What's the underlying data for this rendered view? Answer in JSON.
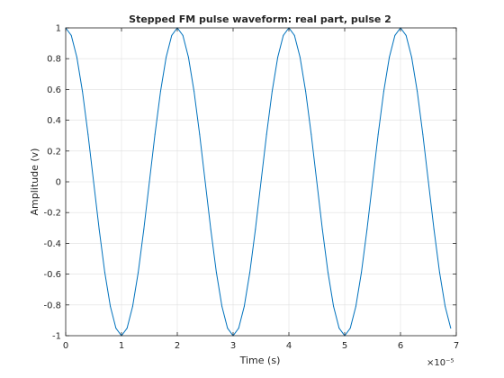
{
  "chart_data": {
    "type": "line",
    "title": "Stepped FM pulse waveform: real part, pulse 2",
    "xlabel": "Time (s)",
    "ylabel": "Amplitude (v)",
    "x_exponent_label": "×10⁻⁵",
    "xlim": [
      0,
      7e-05
    ],
    "ylim": [
      -1,
      1
    ],
    "grid": true,
    "x_ticks": [
      0,
      1e-05,
      2e-05,
      3e-05,
      4e-05,
      5e-05,
      6e-05,
      7e-05
    ],
    "x_tick_labels": [
      "0",
      "1",
      "2",
      "3",
      "4",
      "5",
      "6",
      "7"
    ],
    "y_ticks": [
      -1,
      -0.8,
      -0.6,
      -0.4,
      -0.2,
      0,
      0.2,
      0.4,
      0.6,
      0.8,
      1
    ],
    "y_tick_labels": [
      "-1",
      "-0.8",
      "-0.6",
      "-0.4",
      "-0.2",
      "0",
      "0.2",
      "0.4",
      "0.6",
      "0.8",
      "1"
    ],
    "series": [
      {
        "color": "#0072bd",
        "waveform": "cosine",
        "frequency_hz": 50000,
        "x_start": 0,
        "x_end": 6.9e-05,
        "sample_interval": 1e-06
      }
    ]
  }
}
